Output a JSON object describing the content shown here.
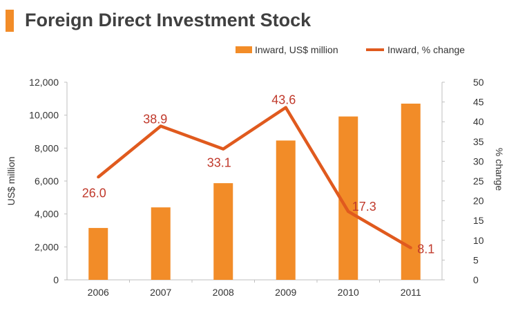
{
  "title": "Foreign Direct Investment Stock",
  "colors": {
    "bar": "#f28c28",
    "line": "#e05a1e",
    "label": "#c0392b",
    "accent": "#f28c28"
  },
  "chart_data": {
    "type": "bar",
    "categories": [
      "2006",
      "2007",
      "2008",
      "2009",
      "2010",
      "2011"
    ],
    "series": [
      {
        "name": "Inward, US$ million",
        "type": "bar",
        "axis": "left",
        "values": [
          3150,
          4400,
          5870,
          8460,
          9920,
          10700
        ]
      },
      {
        "name": "Inward, % change",
        "type": "line",
        "axis": "right",
        "values": [
          26.0,
          38.9,
          33.1,
          43.6,
          17.3,
          8.1
        ],
        "labels": [
          "26.0",
          "38.9",
          "33.1",
          "43.6",
          "17.3",
          "8.1"
        ]
      }
    ],
    "ylabel": "US$ million",
    "y2label": "% change",
    "ylim": [
      0,
      12000
    ],
    "y2lim": [
      0,
      50
    ],
    "yticks": [
      "0",
      "2,000",
      "4,000",
      "6,000",
      "8,000",
      "10,000",
      "12,000"
    ],
    "y2ticks": [
      "0",
      "5",
      "10",
      "15",
      "20",
      "25",
      "30",
      "35",
      "40",
      "45",
      "50"
    ],
    "legend_position": "top-right",
    "grid": false
  }
}
